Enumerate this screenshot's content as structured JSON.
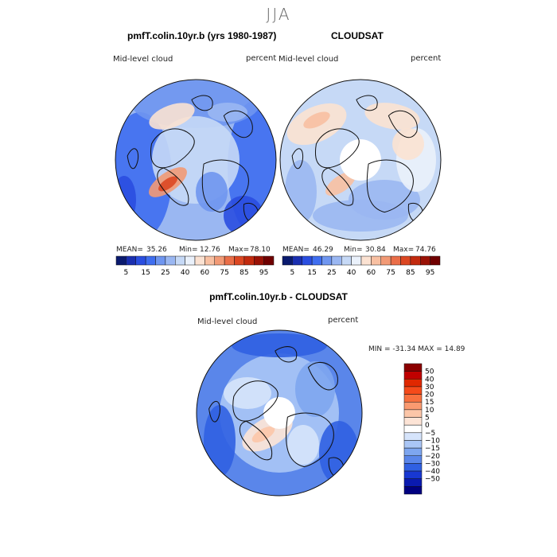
{
  "figure": {
    "season": "JJA",
    "model_title": "pmfT.colin.10yr.b (yrs 1980-1987)",
    "obs_title": "CLOUDSAT",
    "diff_title": "pmfT.colin.10yr.b - CLOUDSAT"
  },
  "panels": {
    "model": {
      "variable": "Mid-level cloud",
      "units": "percent",
      "stats": {
        "mean_label": "MEAN=",
        "mean": "35.26",
        "min_label": "Min=",
        "min": "12.76",
        "max_label": "Max=",
        "max": "78.10"
      }
    },
    "obs": {
      "variable": "Mid-level cloud",
      "units": "percent",
      "stats": {
        "mean_label": "MEAN=",
        "mean": "46.29",
        "min_label": "Min=",
        "min": "30.84",
        "max_label": "Max=",
        "max": "74.76"
      }
    },
    "diff": {
      "variable": "Mid-level cloud",
      "units": "percent",
      "stats_text": "MIN = -31.34  MAX =  14.89"
    }
  },
  "chart_data": [
    {
      "type": "heatmap",
      "title": "pmfT.colin.10yr.b (yrs 1980-1987)",
      "projection": "north polar stereographic",
      "variable": "Mid-level cloud",
      "units": "percent",
      "mean": 35.26,
      "min": 12.76,
      "max": 78.1,
      "colorbar_levels": [
        5,
        10,
        15,
        20,
        25,
        30,
        40,
        50,
        60,
        70,
        75,
        80,
        85,
        90,
        95
      ],
      "colorbar_tick_labels": [
        "5",
        "15",
        "25",
        "40",
        "60",
        "75",
        "85",
        "95"
      ],
      "colors": [
        "#0a1a6e",
        "#1a2fb0",
        "#2a4ee0",
        "#3f6ef0",
        "#6f96f0",
        "#9ab7f2",
        "#c6d9f6",
        "#eaf1fb",
        "#fbe2d2",
        "#f8c0a2",
        "#f29a76",
        "#ea6e48",
        "#dc4722",
        "#c22a0e",
        "#9a1206",
        "#700000"
      ]
    },
    {
      "type": "heatmap",
      "title": "CLOUDSAT",
      "projection": "north polar stereographic",
      "variable": "Mid-level cloud",
      "units": "percent",
      "mean": 46.29,
      "min": 30.84,
      "max": 74.76,
      "colorbar_levels": [
        5,
        10,
        15,
        20,
        25,
        30,
        40,
        50,
        60,
        70,
        75,
        80,
        85,
        90,
        95
      ],
      "colorbar_tick_labels": [
        "5",
        "15",
        "25",
        "40",
        "60",
        "75",
        "85",
        "95"
      ],
      "colors": [
        "#0a1a6e",
        "#1a2fb0",
        "#2a4ee0",
        "#3f6ef0",
        "#6f96f0",
        "#9ab7f2",
        "#c6d9f6",
        "#eaf1fb",
        "#fbe2d2",
        "#f8c0a2",
        "#f29a76",
        "#ea6e48",
        "#dc4722",
        "#c22a0e",
        "#9a1206",
        "#700000"
      ]
    },
    {
      "type": "heatmap",
      "title": "pmfT.colin.10yr.b - CLOUDSAT",
      "projection": "north polar stereographic",
      "variable": "Mid-level cloud",
      "units": "percent",
      "min": -31.34,
      "max": 14.89,
      "colorbar_levels": [
        50,
        40,
        30,
        20,
        15,
        10,
        5,
        0,
        -5,
        -10,
        -15,
        -20,
        -30,
        -40,
        -50
      ],
      "colorbar_tick_labels": [
        "50",
        "40",
        "30",
        "20",
        "15",
        "10",
        "5",
        "0",
        "−5",
        "−10",
        "−15",
        "−20",
        "−30",
        "−40",
        "−50"
      ],
      "colors": [
        "#8b0000",
        "#c00000",
        "#e02800",
        "#f54a1a",
        "#f8703e",
        "#fa9a70",
        "#fcc6a8",
        "#fde4d6",
        "#ffffff",
        "#d6e4fb",
        "#aac6f6",
        "#7ea6f0",
        "#5a86ea",
        "#3060e2",
        "#1838d2",
        "#0a1ab0",
        "#000080"
      ]
    }
  ]
}
